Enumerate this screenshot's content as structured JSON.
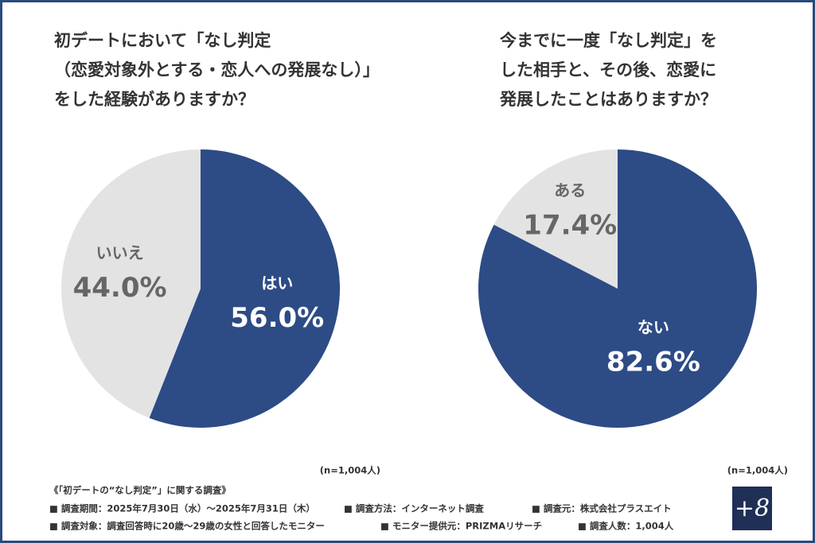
{
  "chart_data": [
    {
      "type": "pie",
      "title": [
        "初デートにおいて「なし判定",
        "（恋愛対象外とする・恋人への発展なし）」",
        "をした経験がありますか？"
      ],
      "categories": [
        "はい",
        "いいえ"
      ],
      "values": [
        56.0,
        44.0
      ],
      "value_labels": [
        "56.0%",
        "44.0%"
      ],
      "colors": [
        "#2d4b85",
        "#e3e3e3"
      ],
      "note": "(n=1,004人)"
    },
    {
      "type": "pie",
      "title": [
        "今までに一度「なし判定」を",
        "した相手と、その後、恋愛に",
        "発展したことはありますか？"
      ],
      "categories": [
        "ない",
        "ある"
      ],
      "values": [
        82.6,
        17.4
      ],
      "value_labels": [
        "82.6%",
        "17.4%"
      ],
      "colors": [
        "#2d4b85",
        "#e3e3e3"
      ],
      "note": "(n=1,004人)"
    }
  ],
  "footer": {
    "heading": "《「初デートの“なし判定”」に関する調査》",
    "items": [
      "■ 調査期間：2025年7月30日（水）〜2025年7月31日（木）",
      "■ 調査方法：インターネット調査",
      "■ 調査元：株式会社プラスエイト",
      "■ 調査対象：調査回答時に20歳〜29歳の女性と回答したモニター",
      "■ モニター提供元：PRIZMAリサーチ",
      "■ 調査人数：1,004人"
    ],
    "logo": "+8"
  }
}
